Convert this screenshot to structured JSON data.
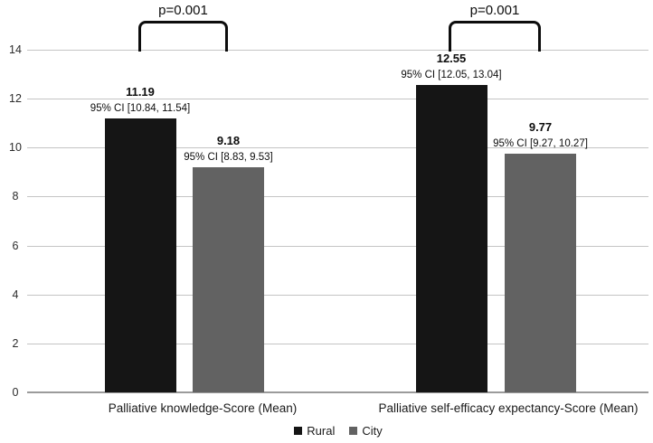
{
  "chart_data": {
    "type": "bar",
    "title": "",
    "xlabel": "",
    "ylabel": "",
    "categories": [
      "Palliative knowledge-Score (Mean)",
      "Palliative self-efficacy expectancy-Score (Mean)"
    ],
    "series": [
      {
        "name": "Rural",
        "color": "#151515",
        "values": [
          11.19,
          12.55
        ],
        "value_labels": [
          "11.19",
          "12.55"
        ],
        "ci_labels": [
          "95% CI [10.84, 11.54]",
          "95% CI [12.05, 13.04]"
        ]
      },
      {
        "name": "City",
        "color": "#626262",
        "values": [
          9.18,
          9.77
        ],
        "value_labels": [
          "9.18",
          "9.77"
        ],
        "ci_labels": [
          "95% CI [8.83, 9.53]",
          "95% CI [9.27, 10.27]"
        ]
      }
    ],
    "significance": [
      {
        "between_group": 0,
        "label": "p=0.001"
      },
      {
        "between_group": 1,
        "label": "p=0.001"
      }
    ],
    "yticks": [
      0,
      2,
      4,
      6,
      8,
      10,
      12,
      14
    ],
    "ylim": [
      0,
      15
    ],
    "grid": true,
    "legend_position": "bottom",
    "legend": [
      "Rural",
      "City"
    ]
  },
  "colors": {
    "rural_bar": "#151515",
    "city_bar": "#626262",
    "gridline": "#c4c4c4",
    "axis_line": "#9b9b9b",
    "bracket": "#0d0d0d",
    "background": "#ffffff"
  }
}
